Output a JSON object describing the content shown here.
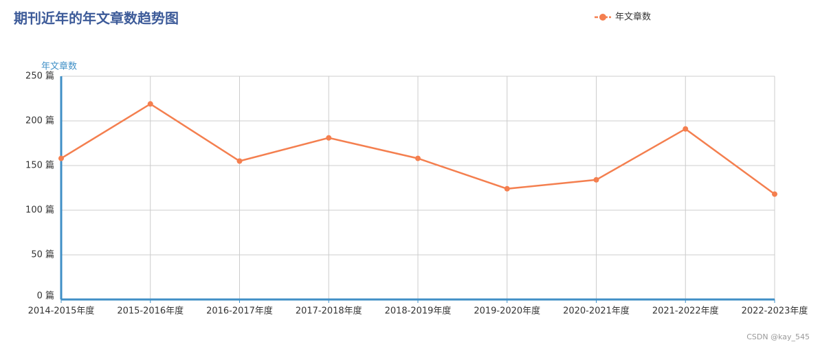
{
  "chart_data": {
    "type": "line",
    "title": "期刊近年的年文章数趋势图",
    "y_label": "年文章数",
    "categories": [
      "2014-2015年度",
      "2015-2016年度",
      "2016-2017年度",
      "2017-2018年度",
      "2018-2019年度",
      "2019-2020年度",
      "2020-2021年度",
      "2021-2022年度",
      "2022-2023年度"
    ],
    "series": [
      {
        "name": "年文章数",
        "color": "#f47f4f",
        "values": [
          158,
          219,
          155,
          181,
          158,
          124,
          134,
          191,
          118
        ]
      }
    ],
    "ylim": [
      0,
      250
    ],
    "yticks": [
      {
        "value": 0,
        "label": "0 篇"
      },
      {
        "value": 50,
        "label": "50 篇"
      },
      {
        "value": 100,
        "label": "100 篇"
      },
      {
        "value": 150,
        "label": "150 篇"
      },
      {
        "value": 200,
        "label": "200 篇"
      },
      {
        "value": 250,
        "label": "250 篇"
      }
    ],
    "grid": true,
    "legend": "top-right"
  },
  "watermark": "CSDN @kay_545"
}
